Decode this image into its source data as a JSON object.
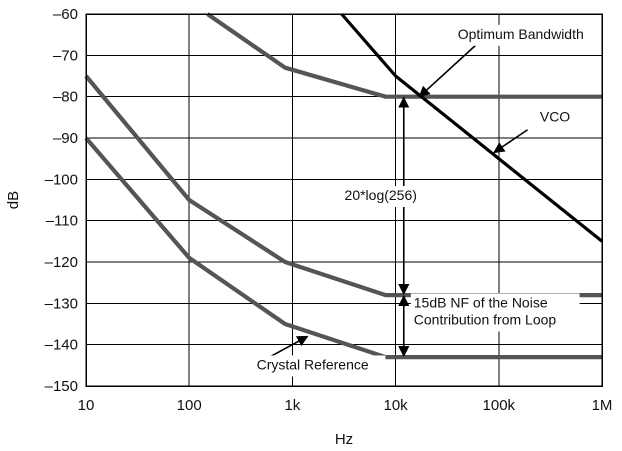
{
  "chart_data": {
    "type": "line",
    "title": "",
    "xlabel": "Hz",
    "ylabel": "dB",
    "x_scale": "log",
    "y_scale": "linear",
    "xlim": [
      10,
      1000000
    ],
    "ylim": [
      -150,
      -60
    ],
    "grid": true,
    "x_ticks": [
      {
        "value": 10,
        "label": "10"
      },
      {
        "value": 100,
        "label": "100"
      },
      {
        "value": 1000,
        "label": "1k"
      },
      {
        "value": 10000,
        "label": "10k"
      },
      {
        "value": 100000,
        "label": "100k"
      },
      {
        "value": 1000000,
        "label": "1M"
      }
    ],
    "y_ticks": [
      {
        "value": -60,
        "label": "–60"
      },
      {
        "value": -70,
        "label": "–70"
      },
      {
        "value": -80,
        "label": "–80"
      },
      {
        "value": -90,
        "label": "–90"
      },
      {
        "value": -100,
        "label": "–100"
      },
      {
        "value": -110,
        "label": "–110"
      },
      {
        "value": -120,
        "label": "–120"
      },
      {
        "value": -130,
        "label": "–130"
      },
      {
        "value": -140,
        "label": "–140"
      },
      {
        "value": -150,
        "label": "–150"
      }
    ],
    "series": [
      {
        "color": "#555555",
        "values": [
          [
            150,
            -60
          ],
          [
            850,
            -73
          ],
          [
            8000,
            -80
          ],
          [
            1000000,
            -80
          ]
        ]
      },
      {
        "color": "#555555",
        "values": [
          [
            10,
            -75
          ],
          [
            100,
            -105
          ],
          [
            850,
            -120
          ],
          [
            8000,
            -128
          ],
          [
            1000000,
            -128
          ]
        ]
      },
      {
        "color": "#555555",
        "values": [
          [
            10,
            -90
          ],
          [
            100,
            -119
          ],
          [
            850,
            -135
          ],
          [
            8000,
            -143
          ],
          [
            1000000,
            -143
          ]
        ]
      },
      {
        "name": "VCO",
        "color": "#000000",
        "values": [
          [
            3000,
            -60
          ],
          [
            10000,
            -75
          ],
          [
            1000000,
            -115
          ]
        ]
      }
    ],
    "annotations": [
      {
        "text": "Optimum Bandwidth",
        "text_at": [
          40000,
          -66
        ],
        "arrow_from": [
          60000,
          -67.5
        ],
        "arrow_to": [
          17000,
          -80
        ]
      },
      {
        "text": "VCO",
        "text_at": [
          250000,
          -86
        ],
        "arrow_from": [
          190000,
          -88
        ],
        "arrow_to": [
          90000,
          -93.5
        ]
      },
      {
        "text": "20*log(256)",
        "text_at": [
          3200,
          -105
        ],
        "double_arrow_x": 12000,
        "double_arrow_y": [
          -80,
          -128
        ]
      },
      {
        "text": [
          "15dB NF of the Noise",
          "Contribution from Loop"
        ],
        "text_at": [
          15000,
          -131
        ],
        "double_arrow_x": 12000,
        "double_arrow_y": [
          -128,
          -143
        ]
      },
      {
        "text": "Crystal Reference",
        "text_at": [
          450,
          -146
        ],
        "arrow_from": [
          600,
          -143
        ],
        "arrow_to": [
          1400,
          -138
        ]
      }
    ]
  }
}
